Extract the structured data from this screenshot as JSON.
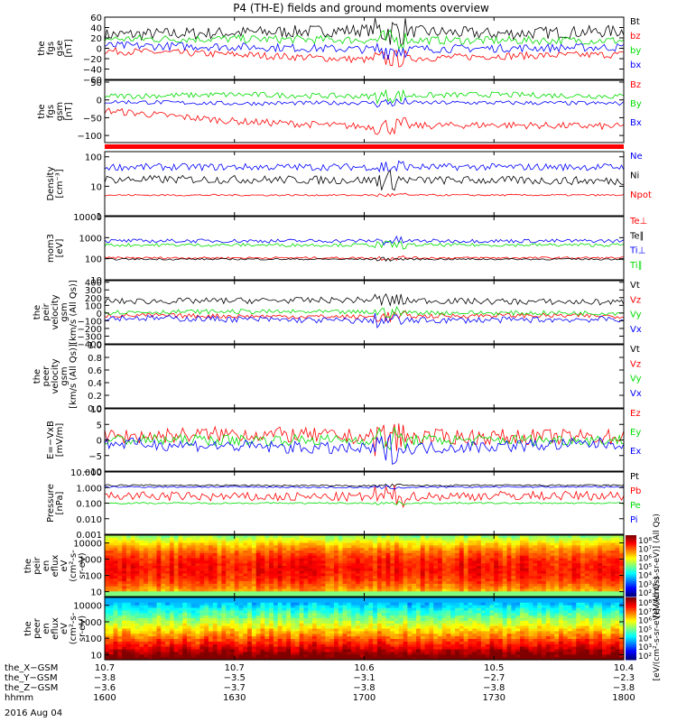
{
  "title": "P4 (TH-E) fields and ground moments overview",
  "date_label": "2016 Aug 04",
  "colors": {
    "black": "#000000",
    "red": "#ff0000",
    "green": "#00dd00",
    "blue": "#0000ff"
  },
  "chart_data": [
    {
      "type": "line",
      "panel": "fgs",
      "ylabel": [
        "the",
        "fgs",
        "gse",
        "[nT]"
      ],
      "ticks": [
        "60",
        "40",
        "20",
        "0",
        "−20",
        "−40",
        "−60"
      ],
      "ylim": [
        -60,
        60
      ],
      "series": [
        {
          "name": "Bt",
          "color": "#000000",
          "level": [
            26,
            30,
            35,
            28,
            33
          ],
          "noise": 12
        },
        {
          "name": "bz",
          "color": "#ff0000",
          "level": [
            -5,
            -12,
            -22,
            -15,
            -12
          ],
          "noise": 7
        },
        {
          "name": "by",
          "color": "#00dd00",
          "level": [
            18,
            18,
            16,
            15,
            15
          ],
          "noise": 8
        },
        {
          "name": "bx",
          "color": "#0000ff",
          "level": [
            5,
            3,
            -2,
            0,
            2
          ],
          "noise": 8
        }
      ]
    },
    {
      "type": "line",
      "panel": "fgs_gsm",
      "ylabel": [
        "the",
        "fgs",
        "gsm",
        "[nT]"
      ],
      "ticks": [
        "50",
        "0",
        "−50",
        "−100"
      ],
      "ylim": [
        -120,
        55
      ],
      "series": [
        {
          "name": "Bz",
          "color": "#ff0000",
          "level": [
            -30,
            -60,
            -75,
            -70,
            -75
          ],
          "noise": 10
        },
        {
          "name": "By",
          "color": "#00dd00",
          "level": [
            10,
            15,
            10,
            15,
            10
          ],
          "noise": 8
        },
        {
          "name": "Bx",
          "color": "#0000ff",
          "level": [
            -5,
            -10,
            -8,
            -8,
            -10
          ],
          "noise": 6
        }
      ]
    },
    {
      "type": "line",
      "panel": "density",
      "log": true,
      "ylabel": [
        "Density",
        "[cm⁻³]"
      ],
      "ticks": [
        "100",
        "10",
        "1"
      ],
      "ylim": [
        1,
        150
      ],
      "series": [
        {
          "name": "Ne",
          "color": "#0000ff",
          "level": [
            45,
            45,
            45,
            45,
            45
          ],
          "noise": 0.12
        },
        {
          "name": "Ni",
          "color": "#000000",
          "level": [
            17,
            17,
            16,
            16,
            15
          ],
          "noise": 0.14
        },
        {
          "name": "Npot",
          "color": "#ff0000",
          "level": [
            5,
            5,
            5,
            5,
            5
          ],
          "noise": 0.03
        }
      ]
    },
    {
      "type": "line",
      "panel": "temperature",
      "log": true,
      "ylabel": [
        "mom3",
        "[eV]"
      ],
      "ticks": [
        "10000",
        "1000",
        "100",
        "10"
      ],
      "ylim": [
        10,
        10000
      ],
      "series": [
        {
          "name": "Te⊥",
          "color": "#ff0000",
          "level": [
            110,
            110,
            110,
            110,
            110
          ],
          "noise": 0.05
        },
        {
          "name": "Te∥",
          "color": "#000000",
          "level": [
            95,
            95,
            95,
            95,
            95
          ],
          "noise": 0.04
        },
        {
          "name": "Ti⊥",
          "color": "#0000ff",
          "level": [
            700,
            700,
            700,
            700,
            700
          ],
          "noise": 0.09
        },
        {
          "name": "Ti∥",
          "color": "#00dd00",
          "level": [
            450,
            450,
            450,
            450,
            450
          ],
          "noise": 0.08
        }
      ]
    },
    {
      "type": "line",
      "panel": "peir_velocity",
      "ylabel": [
        "the",
        "peir",
        "velocity",
        "gsm",
        "[km/s (All Qs)]"
      ],
      "ticks": [
        "400",
        "300",
        "200",
        "100",
        "0",
        "−100",
        "−200",
        "−300",
        "−400"
      ],
      "ylim": [
        -400,
        420
      ],
      "series": [
        {
          "name": "Vt",
          "color": "#000000",
          "level": [
            150,
            160,
            170,
            150,
            140
          ],
          "noise": 40
        },
        {
          "name": "Vz",
          "color": "#ff0000",
          "level": [
            -30,
            -40,
            -50,
            -30,
            -40
          ],
          "noise": 30
        },
        {
          "name": "Vy",
          "color": "#00dd00",
          "level": [
            10,
            20,
            10,
            0,
            0
          ],
          "noise": 30
        },
        {
          "name": "Vx",
          "color": "#0000ff",
          "level": [
            -60,
            -80,
            -100,
            -90,
            -80
          ],
          "noise": 40
        }
      ]
    },
    {
      "type": "line",
      "panel": "peer_velocity",
      "ylabel": [
        "the",
        "peer",
        "velocity",
        "gsm",
        "[km/s (All Qs)]"
      ],
      "ticks": [
        "1.0",
        "0.8",
        "0.6",
        "0.4",
        "0.2",
        "0.0"
      ],
      "ylim": [
        0,
        1
      ],
      "series": [
        {
          "name": "Vt",
          "color": "#000000"
        },
        {
          "name": "Vz",
          "color": "#ff0000"
        },
        {
          "name": "Vy",
          "color": "#00dd00"
        },
        {
          "name": "Vx",
          "color": "#0000ff"
        }
      ]
    },
    {
      "type": "line",
      "panel": "efield",
      "ylabel": [
        "E=−VxB",
        "[mV/m]"
      ],
      "ticks": [
        "10",
        "5",
        "0",
        "−5",
        "−10"
      ],
      "ylim": [
        -10,
        10
      ],
      "series": [
        {
          "name": "Ez",
          "color": "#ff0000",
          "level": [
            1,
            2,
            1,
            1,
            1
          ],
          "noise": 2.5
        },
        {
          "name": "Ey",
          "color": "#00dd00",
          "level": [
            0,
            0,
            0,
            0,
            0
          ],
          "noise": 1.8
        },
        {
          "name": "Ex",
          "color": "#0000ff",
          "level": [
            -1,
            -2,
            -3,
            -2,
            -1
          ],
          "noise": 2
        }
      ]
    },
    {
      "type": "line",
      "panel": "pressure",
      "log": true,
      "ylabel": [
        "Pressure",
        "[nPa]"
      ],
      "ticks": [
        "10.000",
        "1.000",
        "0.100",
        "0.010",
        "0.001"
      ],
      "ylim": [
        0.001,
        10
      ],
      "series": [
        {
          "name": "Pt",
          "color": "#000000",
          "level": [
            1.4,
            1.4,
            1.3,
            1.4,
            1.4
          ],
          "noise": 0.05
        },
        {
          "name": "Pb",
          "color": "#ff0000",
          "level": [
            0.3,
            0.25,
            0.25,
            0.3,
            0.3
          ],
          "noise": 0.3
        },
        {
          "name": "Pe",
          "color": "#00dd00",
          "level": [
            0.1,
            0.1,
            0.1,
            0.1,
            0.1
          ],
          "noise": 0.05
        },
        {
          "name": "Pi",
          "color": "#0000ff",
          "level": [
            1.1,
            1.1,
            1.0,
            1.1,
            1.1
          ],
          "noise": 0.05
        }
      ]
    },
    {
      "type": "heatmap",
      "panel": "peir_spectrogram",
      "log": true,
      "ylabel": [
        "the",
        "peir",
        "en",
        "eflux",
        "eV",
        "(cm²-s-",
        "sr-eV)"
      ],
      "ticks": [
        "10000",
        "1000",
        "100",
        "10"
      ],
      "ylim": [
        5,
        30000
      ],
      "colorbar_ticks": [
        "10⁸",
        "10⁷",
        "10⁶",
        "10⁵",
        "10⁴",
        "10³",
        "10²"
      ],
      "colorbar_label": "[eV/(cm²-s-sr-eV)] (All Qs)"
    },
    {
      "type": "heatmap",
      "panel": "peer_spectrogram",
      "log": true,
      "ylabel": [
        "the",
        "peer",
        "en",
        "eflux",
        "eV",
        "(cm²-s-",
        "sr-eV)"
      ],
      "ticks": [
        "10000",
        "1000",
        "100",
        "10"
      ],
      "ylim": [
        5,
        30000
      ],
      "colorbar_ticks": [
        "10⁸",
        "10⁷",
        "10⁶",
        "10⁵",
        "10⁴",
        "10³",
        "10²"
      ],
      "colorbar_label": "[eV/(cm²-s-sr-eV)] (All Qs)"
    }
  ],
  "x_axis": {
    "row_labels": [
      "the_X−GSM",
      "the_Y−GSM",
      "the_Z−GSM",
      "hhmm"
    ],
    "columns": [
      [
        "10.7",
        "−3.8",
        "−3.6",
        "1600"
      ],
      [
        "10.7",
        "−3.5",
        "−3.7",
        "1630"
      ],
      [
        "10.6",
        "−3.1",
        "−3.8",
        "1700"
      ],
      [
        "10.5",
        "−2.7",
        "−3.8",
        "1730"
      ],
      [
        "10.4",
        "−2.3",
        "−3.8",
        "1800"
      ]
    ]
  }
}
